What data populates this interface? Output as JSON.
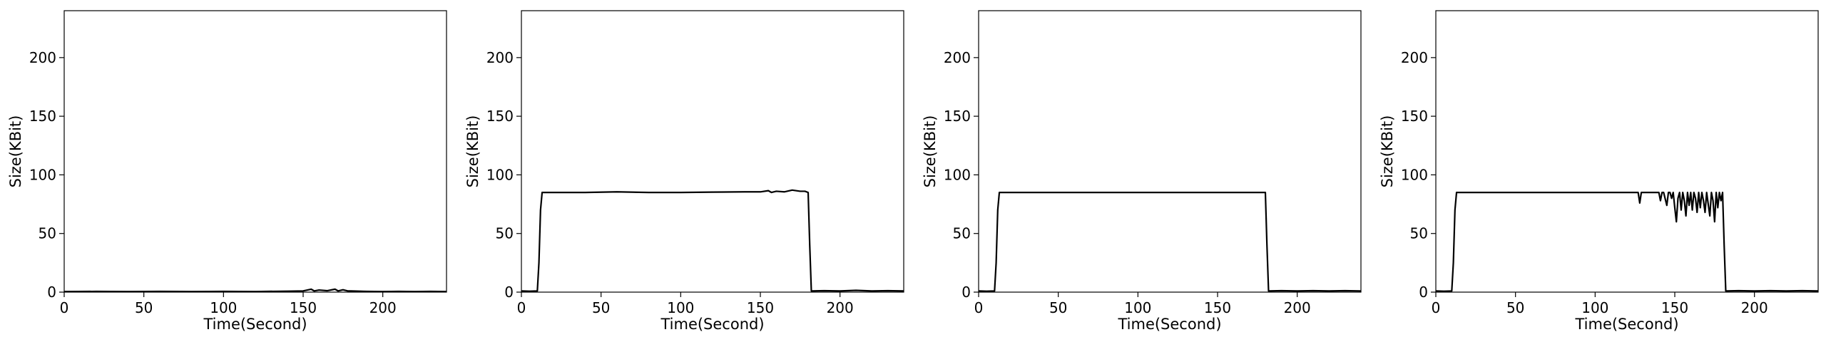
{
  "chart_data": [
    {
      "type": "line",
      "xlabel": "Time(Second)",
      "ylabel": "Size(KBit)",
      "xlim": [
        0,
        240
      ],
      "ylim": [
        0,
        240
      ],
      "xticks": [
        0,
        50,
        100,
        150,
        200
      ],
      "yticks": [
        0,
        50,
        100,
        150,
        200
      ],
      "grid": false,
      "series": [
        {
          "color": "#000000",
          "x": [
            0,
            20,
            40,
            60,
            80,
            100,
            120,
            140,
            150,
            155,
            157,
            160,
            165,
            170,
            172,
            175,
            178,
            180,
            190,
            200,
            210,
            220,
            230,
            240
          ],
          "y": [
            0.5,
            0.6,
            0.5,
            0.6,
            0.5,
            0.6,
            0.5,
            0.8,
            1.0,
            2.5,
            1.0,
            1.8,
            1.2,
            2.5,
            1.0,
            2.0,
            1.0,
            1.0,
            0.6,
            0.5,
            0.6,
            0.5,
            0.6,
            0.5
          ]
        }
      ]
    },
    {
      "type": "line",
      "xlabel": "Time(Second)",
      "ylabel": "Size(KBit)",
      "xlim": [
        0,
        240
      ],
      "ylim": [
        0,
        240
      ],
      "xticks": [
        0,
        50,
        100,
        150,
        200
      ],
      "yticks": [
        0,
        50,
        100,
        150,
        200
      ],
      "grid": false,
      "series": [
        {
          "color": "#000000",
          "x": [
            0,
            5,
            10,
            11,
            12,
            13,
            20,
            40,
            60,
            80,
            100,
            120,
            140,
            150,
            155,
            157,
            160,
            165,
            170,
            175,
            178,
            180,
            181,
            182,
            190,
            200,
            210,
            220,
            230,
            240
          ],
          "y": [
            1,
            0.8,
            1,
            25,
            70,
            85,
            85,
            85,
            85.5,
            85,
            85,
            85.3,
            85.5,
            85.5,
            86.5,
            85,
            86,
            85.5,
            87,
            86,
            86,
            85,
            40,
            1,
            1.2,
            1,
            1.5,
            1,
            1.2,
            1
          ]
        }
      ]
    },
    {
      "type": "line",
      "xlabel": "Time(Second)",
      "ylabel": "Size(KBit)",
      "xlim": [
        0,
        240
      ],
      "ylim": [
        0,
        240
      ],
      "xticks": [
        0,
        50,
        100,
        150,
        200
      ],
      "yticks": [
        0,
        50,
        100,
        150,
        200
      ],
      "grid": false,
      "series": [
        {
          "color": "#000000",
          "x": [
            0,
            5,
            10,
            11,
            12,
            13,
            20,
            40,
            60,
            80,
            100,
            120,
            140,
            160,
            170,
            178,
            180,
            181,
            182,
            190,
            200,
            210,
            220,
            230,
            240
          ],
          "y": [
            1,
            0.8,
            1,
            25,
            70,
            85,
            85,
            85,
            85,
            85,
            85,
            85,
            85,
            85,
            85,
            85,
            85,
            40,
            1,
            1.2,
            1,
            1.2,
            1,
            1.2,
            1
          ]
        }
      ]
    },
    {
      "type": "line",
      "xlabel": "Time(Second)",
      "ylabel": "Size(KBit)",
      "xlim": [
        0,
        240
      ],
      "ylim": [
        0,
        240
      ],
      "xticks": [
        0,
        50,
        100,
        150,
        200
      ],
      "yticks": [
        0,
        50,
        100,
        150,
        200
      ],
      "grid": false,
      "series": [
        {
          "color": "#000000",
          "x": [
            0,
            5,
            10,
            11,
            12,
            13,
            20,
            40,
            60,
            80,
            100,
            120,
            127,
            128,
            129,
            130,
            140,
            141,
            142,
            143,
            145,
            146,
            147,
            148,
            149,
            150,
            151,
            152,
            153,
            154,
            155,
            156,
            157,
            158,
            159,
            160,
            161,
            162,
            163,
            164,
            165,
            166,
            167,
            168,
            169,
            170,
            171,
            172,
            173,
            174,
            175,
            176,
            177,
            178,
            179,
            180,
            181,
            182,
            190,
            200,
            210,
            220,
            230,
            240
          ],
          "y": [
            1,
            0.8,
            1,
            25,
            70,
            85,
            85,
            85,
            85,
            85,
            85,
            85,
            85,
            76,
            85,
            85,
            85,
            78,
            85,
            85,
            74,
            85,
            85,
            80,
            85,
            72,
            60,
            80,
            85,
            70,
            85,
            78,
            65,
            85,
            74,
            85,
            70,
            85,
            80,
            68,
            85,
            72,
            85,
            78,
            68,
            85,
            75,
            65,
            85,
            78,
            60,
            85,
            72,
            85,
            78,
            85,
            40,
            1,
            1.2,
            1,
            1.2,
            1,
            1.2,
            1
          ]
        }
      ]
    }
  ]
}
